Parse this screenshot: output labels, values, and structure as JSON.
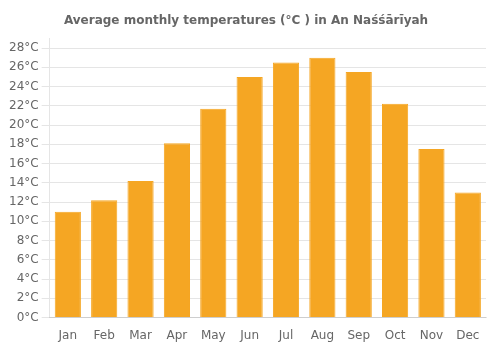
{
  "chart_data": {
    "type": "bar",
    "title": "Average monthly temperatures (°C ) in An Naśśārīyah",
    "categories": [
      "Jan",
      "Feb",
      "Mar",
      "Apr",
      "May",
      "Jun",
      "Jul",
      "Aug",
      "Sep",
      "Oct",
      "Nov",
      "Dec"
    ],
    "values": [
      11.0,
      12.2,
      14.2,
      18.1,
      21.7,
      25.0,
      26.5,
      27.0,
      25.5,
      22.2,
      17.5,
      13.0
    ],
    "color": "#F5A623",
    "ylim": [
      0,
      29
    ],
    "yticks": [
      {
        "value": 0,
        "label": "0°C"
      },
      {
        "value": 2,
        "label": "2°C"
      },
      {
        "value": 4,
        "label": "4°C"
      },
      {
        "value": 6,
        "label": "6°C"
      },
      {
        "value": 8,
        "label": "8°C"
      },
      {
        "value": 10,
        "label": "10°C"
      },
      {
        "value": 12,
        "label": "12°C"
      },
      {
        "value": 14,
        "label": "14°C"
      },
      {
        "value": 16,
        "label": "16°C"
      },
      {
        "value": 18,
        "label": "18°C"
      },
      {
        "value": 20,
        "label": "20°C"
      },
      {
        "value": 22,
        "label": "22°C"
      },
      {
        "value": 24,
        "label": "24°C"
      },
      {
        "value": 26,
        "label": "26°C"
      },
      {
        "value": 28,
        "label": "28°C"
      }
    ],
    "grid": true
  }
}
